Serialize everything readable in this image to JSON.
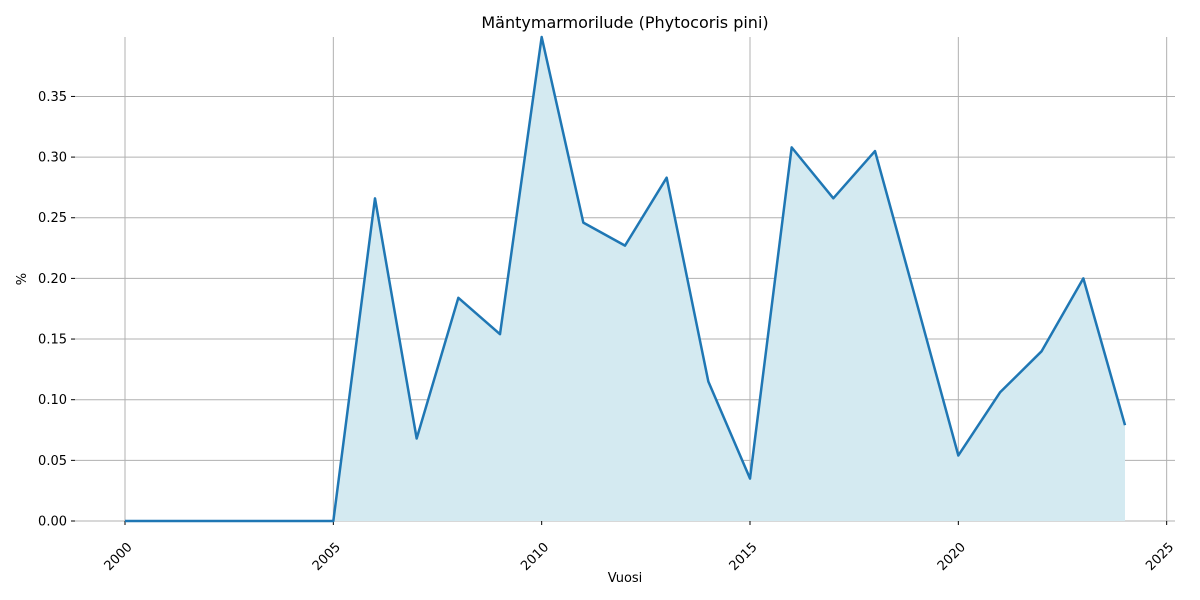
{
  "chart_data": {
    "type": "area",
    "title": "Mäntymarmorilude (Phytocoris pini)",
    "x_label": "Vuosi",
    "y_label": "%",
    "x": [
      2000,
      2001,
      2002,
      2003,
      2004,
      2005,
      2006,
      2007,
      2008,
      2009,
      2010,
      2011,
      2012,
      2013,
      2014,
      2015,
      2016,
      2017,
      2018,
      2019,
      2020,
      2021,
      2022,
      2023,
      2024
    ],
    "values": [
      0,
      0,
      0,
      0,
      0,
      0,
      0.266,
      0.068,
      0.184,
      0.154,
      0.399,
      0.246,
      0.227,
      0.283,
      0.115,
      0.035,
      0.308,
      0.266,
      0.305,
      0.18,
      0.054,
      0.106,
      0.14,
      0.2,
      0.079
    ],
    "color": "#1f77b4",
    "fill_color": "#d4eaf1",
    "xlim": [
      1998.8,
      2025.2
    ],
    "ylim": [
      0,
      0.399
    ],
    "xticks": [
      2000,
      2005,
      2010,
      2015,
      2020,
      2025
    ],
    "yticks": [
      {
        "value": 0,
        "label": "0.00"
      },
      {
        "value": 0.05,
        "label": "0.05"
      },
      {
        "value": 0.1,
        "label": "0.10"
      },
      {
        "value": 0.15,
        "label": "0.15"
      },
      {
        "value": 0.2,
        "label": "0.20"
      },
      {
        "value": 0.25,
        "label": "0.25"
      },
      {
        "value": 0.3,
        "label": "0.30"
      },
      {
        "value": 0.35,
        "label": "0.35"
      }
    ],
    "grid": true
  }
}
